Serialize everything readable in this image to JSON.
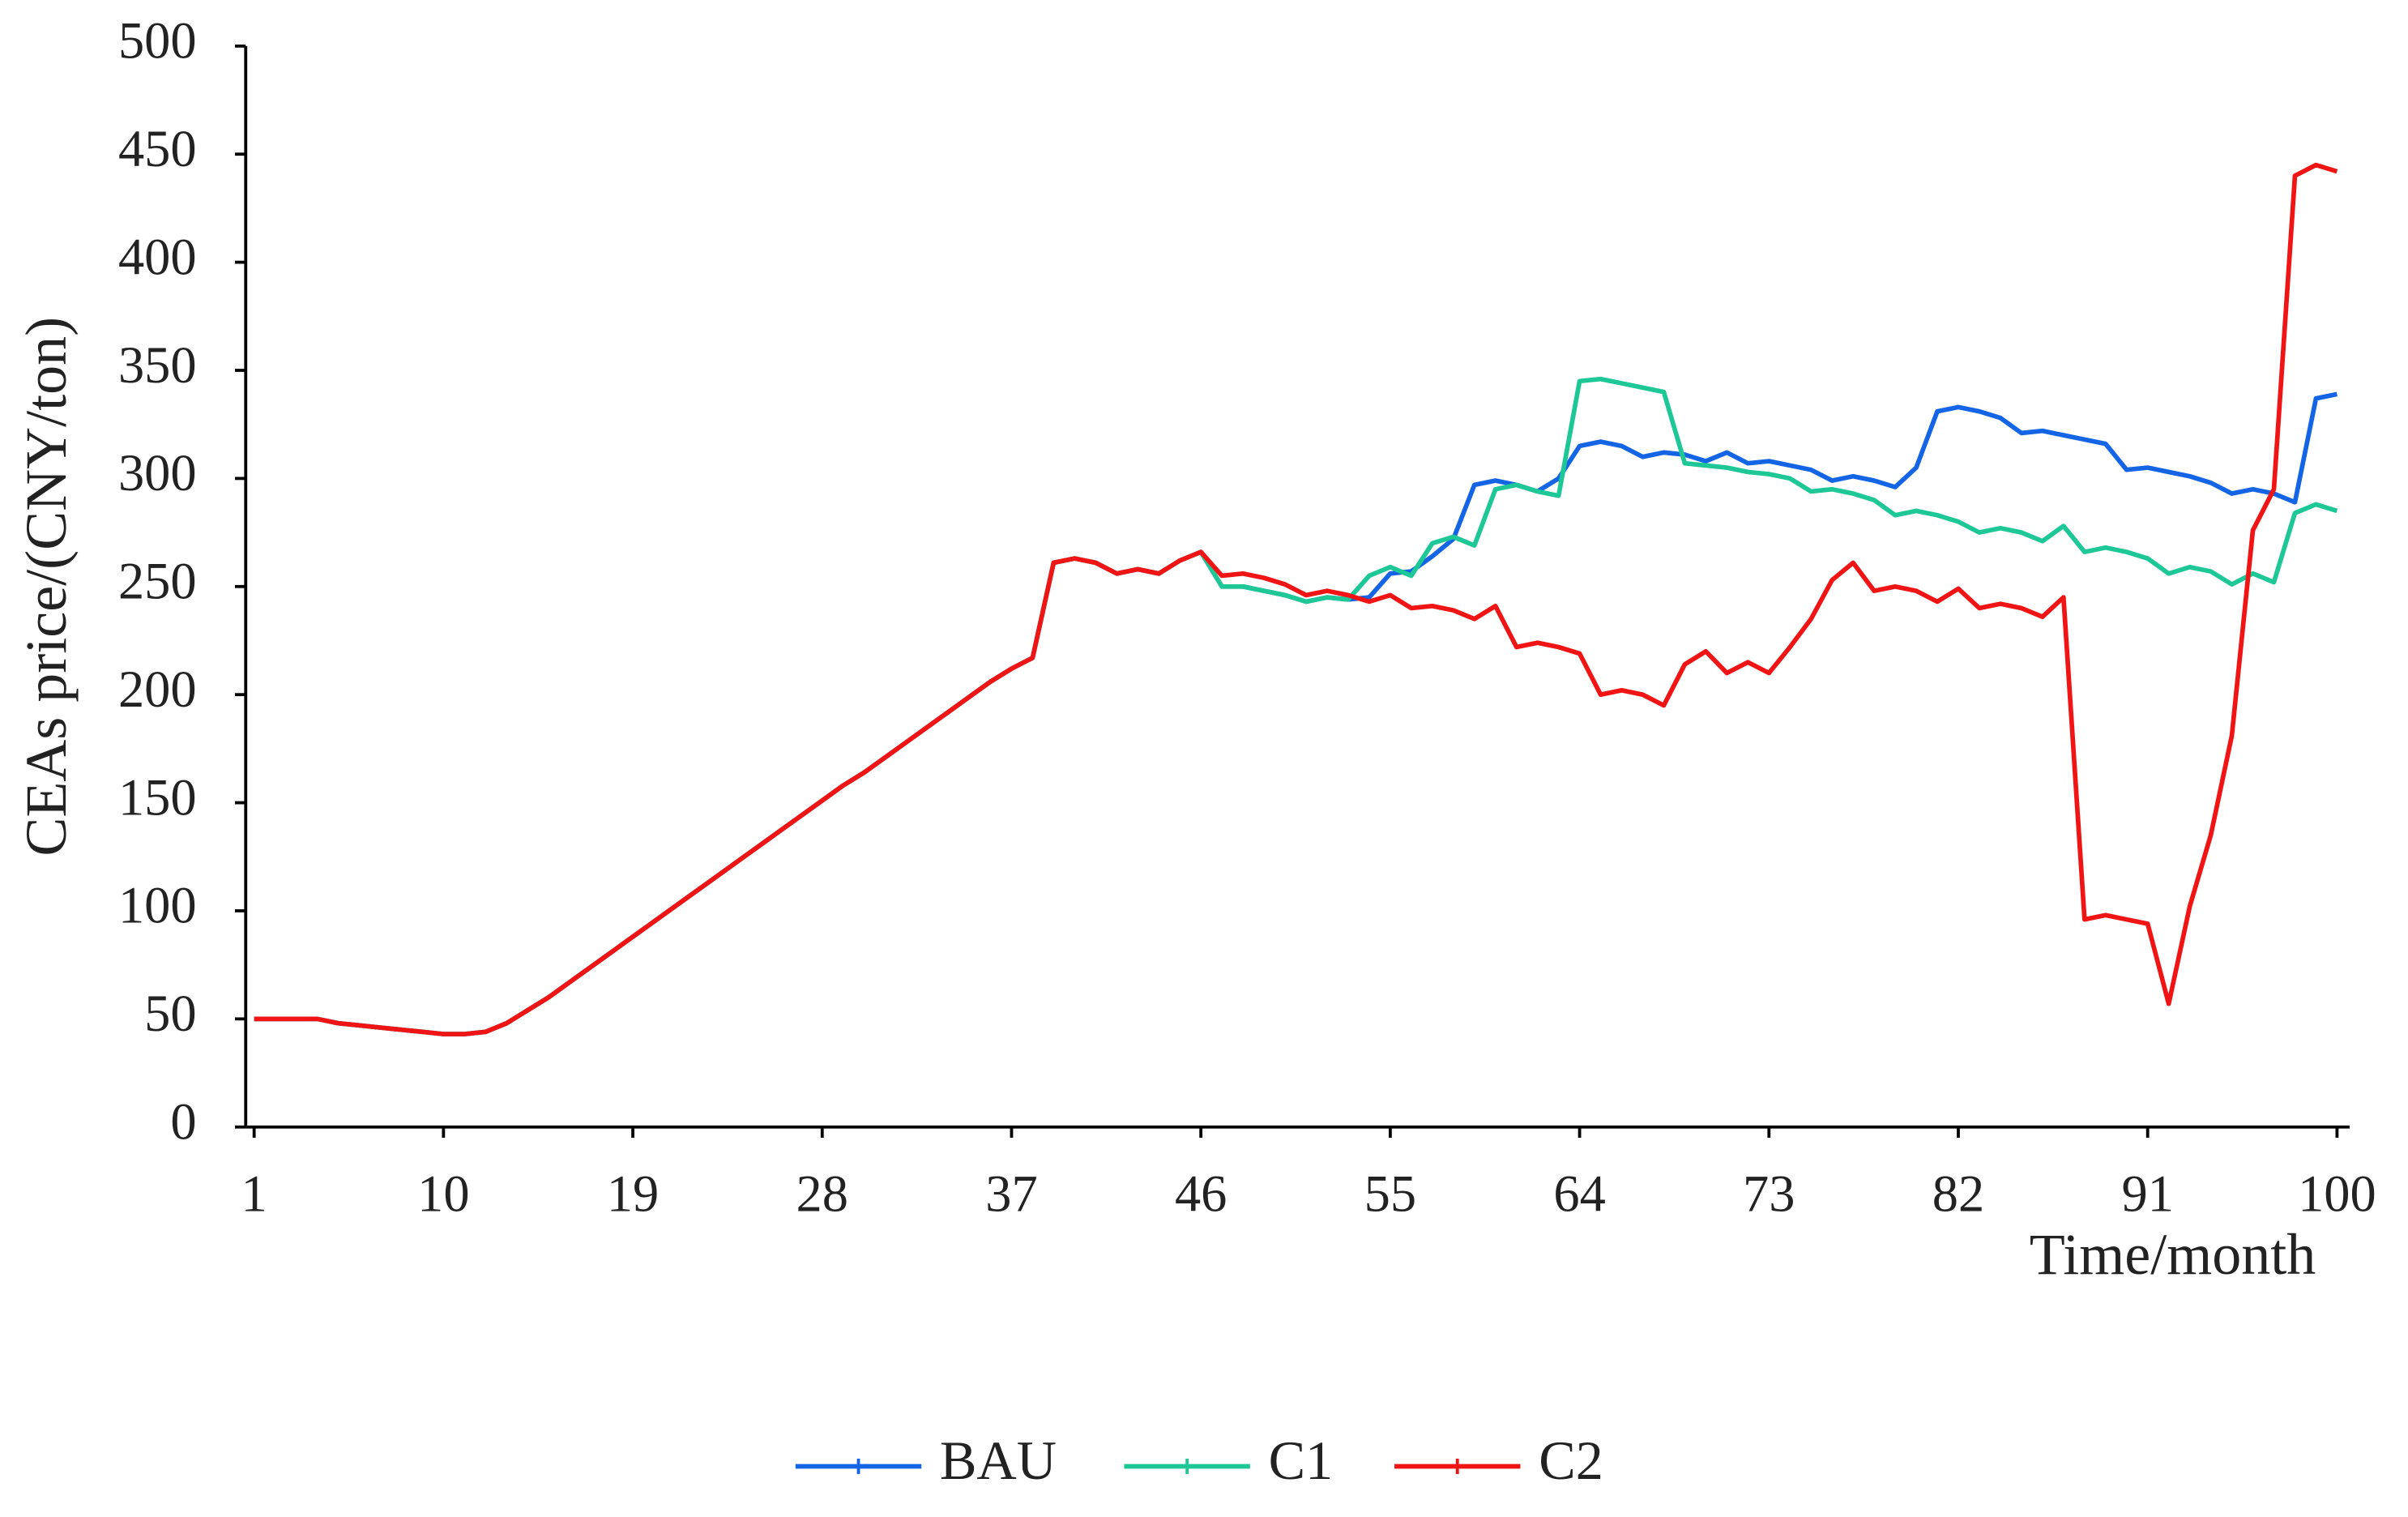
{
  "chart_data": {
    "type": "line",
    "x_label": "Time/month",
    "y_label": "CEAs price/(CNY/ton)",
    "x": [
      1,
      2,
      3,
      4,
      5,
      6,
      7,
      8,
      9,
      10,
      11,
      12,
      13,
      14,
      15,
      16,
      17,
      18,
      19,
      20,
      21,
      22,
      23,
      24,
      25,
      26,
      27,
      28,
      29,
      30,
      31,
      32,
      33,
      34,
      35,
      36,
      37,
      38,
      39,
      40,
      41,
      42,
      43,
      44,
      45,
      46,
      47,
      48,
      49,
      50,
      51,
      52,
      53,
      54,
      55,
      56,
      57,
      58,
      59,
      60,
      61,
      62,
      63,
      64,
      65,
      66,
      67,
      68,
      69,
      70,
      71,
      72,
      73,
      74,
      75,
      76,
      77,
      78,
      79,
      80,
      81,
      82,
      83,
      84,
      85,
      86,
      87,
      88,
      89,
      90,
      91,
      92,
      93,
      94,
      95,
      96,
      97,
      98,
      99,
      100
    ],
    "xlim": [
      0.6,
      100.6
    ],
    "xticks": [
      1,
      10,
      19,
      28,
      37,
      46,
      55,
      64,
      73,
      82,
      91,
      100
    ],
    "ylim": [
      0,
      500
    ],
    "yticks": [
      0,
      50,
      100,
      150,
      200,
      250,
      300,
      350,
      400,
      450,
      500
    ],
    "grid": false,
    "legend": "bottom",
    "series": [
      {
        "name": "BAU",
        "color": "#1464e6",
        "values": [
          50,
          50,
          50,
          50,
          48,
          47,
          46,
          45,
          44,
          43,
          43,
          44,
          48,
          54,
          60,
          67,
          74,
          81,
          88,
          95,
          102,
          109,
          116,
          123,
          130,
          137,
          144,
          151,
          158,
          164,
          171,
          178,
          185,
          192,
          199,
          206,
          212,
          217,
          261,
          263,
          261,
          256,
          258,
          256,
          262,
          266,
          250,
          250,
          248,
          246,
          243,
          245,
          244,
          245,
          256,
          257,
          264,
          272,
          297,
          299,
          297,
          294,
          300,
          315,
          317,
          315,
          310,
          312,
          311,
          308,
          312,
          307,
          308,
          306,
          304,
          299,
          301,
          299,
          296,
          305,
          331,
          333,
          331,
          328,
          321,
          322,
          320,
          318,
          316,
          304,
          305,
          303,
          301,
          298,
          293,
          295,
          293,
          289,
          337,
          339
        ]
      },
      {
        "name": "C1",
        "color": "#1ec896",
        "values": [
          50,
          50,
          50,
          50,
          48,
          47,
          46,
          45,
          44,
          43,
          43,
          44,
          48,
          54,
          60,
          67,
          74,
          81,
          88,
          95,
          102,
          109,
          116,
          123,
          130,
          137,
          144,
          151,
          158,
          164,
          171,
          178,
          185,
          192,
          199,
          206,
          212,
          217,
          261,
          263,
          261,
          256,
          258,
          256,
          262,
          266,
          250,
          250,
          248,
          246,
          243,
          245,
          244,
          255,
          259,
          255,
          270,
          273,
          269,
          295,
          297,
          294,
          292,
          345,
          346,
          344,
          342,
          340,
          307,
          306,
          305,
          303,
          302,
          300,
          294,
          295,
          293,
          290,
          283,
          285,
          283,
          280,
          275,
          277,
          275,
          271,
          278,
          266,
          268,
          266,
          263,
          256,
          259,
          257,
          251,
          256,
          252,
          284,
          288,
          285
        ]
      },
      {
        "name": "C2",
        "color": "#f01414",
        "values": [
          50,
          50,
          50,
          50,
          48,
          47,
          46,
          45,
          44,
          43,
          43,
          44,
          48,
          54,
          60,
          67,
          74,
          81,
          88,
          95,
          102,
          109,
          116,
          123,
          130,
          137,
          144,
          151,
          158,
          164,
          171,
          178,
          185,
          192,
          199,
          206,
          212,
          217,
          261,
          263,
          261,
          256,
          258,
          256,
          262,
          266,
          255,
          256,
          254,
          251,
          246,
          248,
          246,
          243,
          246,
          240,
          241,
          239,
          235,
          241,
          222,
          224,
          222,
          219,
          200,
          202,
          200,
          195,
          214,
          220,
          210,
          215,
          210,
          222,
          235,
          253,
          261,
          248,
          250,
          248,
          243,
          249,
          240,
          242,
          240,
          236,
          245,
          96,
          98,
          96,
          94,
          57,
          102,
          135,
          181,
          276,
          295,
          440,
          445,
          442
        ]
      }
    ]
  }
}
